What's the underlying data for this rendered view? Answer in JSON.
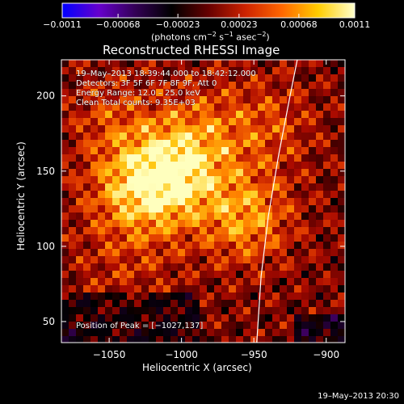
{
  "colorbar": {
    "range": [
      -0.0011,
      0.0011
    ],
    "tick_labels": [
      "−0.0011",
      "−0.00068",
      "−0.00023",
      "0.00023",
      "0.00068",
      "0.0011"
    ],
    "unit": {
      "prefix": "(photons cm",
      "exp1": "−2",
      "mid": " s",
      "exp2": "−1",
      "mid2": " asec",
      "exp3": "−2",
      "suffix": ")"
    },
    "colors": [
      "#0000ff",
      "#6600cc",
      "#330055",
      "#000000",
      "#660000",
      "#cc2200",
      "#ff6600",
      "#ffcc00",
      "#ffffcc"
    ]
  },
  "chart_data": {
    "type": "heatmap",
    "title": "Reconstructed RHESSI Image",
    "xlabel": "Heliocentric X (arcsec)",
    "ylabel": "Heliocentric Y (arcsec)",
    "xlim": [
      -1083,
      -887
    ],
    "ylim": [
      36,
      224
    ],
    "xticks": [
      -1050,
      -1000,
      -950,
      -900
    ],
    "yticks": [
      50,
      100,
      150,
      200
    ],
    "xtick_labels": [
      "−1050",
      "−1000",
      "−950",
      "−900"
    ],
    "ytick_labels": [
      "50",
      "100",
      "150",
      "200"
    ],
    "peak": [
      -1027,
      137
    ],
    "limb_curve": [
      [
        -948,
        36
      ],
      [
        -945,
        80
      ],
      [
        -940,
        120
      ],
      [
        -933,
        160
      ],
      [
        -925,
        200
      ],
      [
        -920,
        224
      ]
    ],
    "annotations": {
      "time": "19–May–2013 18:39:44.000 to 18:42:12.000",
      "detectors": "Detectors: 3F 5F 6F 7F 8F 9F, Att 0",
      "energy": "Energy Range: 12.0 – 25.0 keV",
      "clean": "Clean     Total counts: 9.35E+03",
      "peak_text": "Position of Peak = [−1027,137]"
    }
  },
  "footer": {
    "timestamp": "19–May–2013 20:30"
  }
}
